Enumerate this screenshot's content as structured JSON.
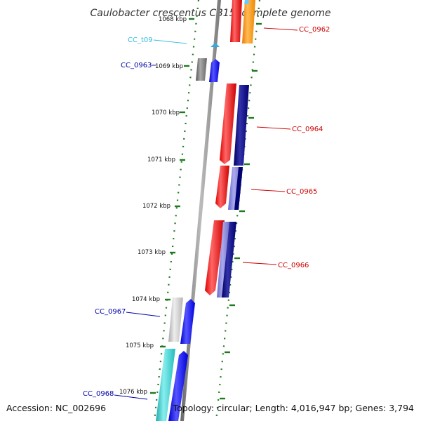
{
  "title": "Caulobacter crescentus CB15, complete genome",
  "footer": {
    "accession": "Accession: NC_002696",
    "topology": "Topology: circular; Length: 4,016,947 bp; Genes: 3,794"
  },
  "position_labels": [
    "1068 kbp",
    "1069 kbp",
    "1070 kbp",
    "1071 kbp",
    "1072 kbp",
    "1073 kbp",
    "1074 kbp",
    "1075 kbp",
    "1076 kbp"
  ],
  "gene_labels": [
    {
      "name": "CC_0962",
      "color": "#cc0000"
    },
    {
      "name": "CC_t09",
      "color": "#33bbdd"
    },
    {
      "name": "CC_0963",
      "color": "#0000aa"
    },
    {
      "name": "CC_0964",
      "color": "#cc0000"
    },
    {
      "name": "CC_0965",
      "color": "#cc0000"
    },
    {
      "name": "CC_0966",
      "color": "#cc0000"
    },
    {
      "name": "CC_0967",
      "color": "#0000aa"
    },
    {
      "name": "CC_0968",
      "color": "#0000aa"
    }
  ],
  "colors": {
    "backbone": "#888888",
    "ticks": "#1f7a1f",
    "cds_forward": "#ff0000",
    "cds_forward_alt": "#ff8c00",
    "cds_reverse": "#000080",
    "cds_blue": "#0000ff",
    "cds_gray": "#777777",
    "cds_lightgray": "#c8c8c8",
    "cds_cyan": "#33cccc",
    "trna": "#33aadd"
  }
}
